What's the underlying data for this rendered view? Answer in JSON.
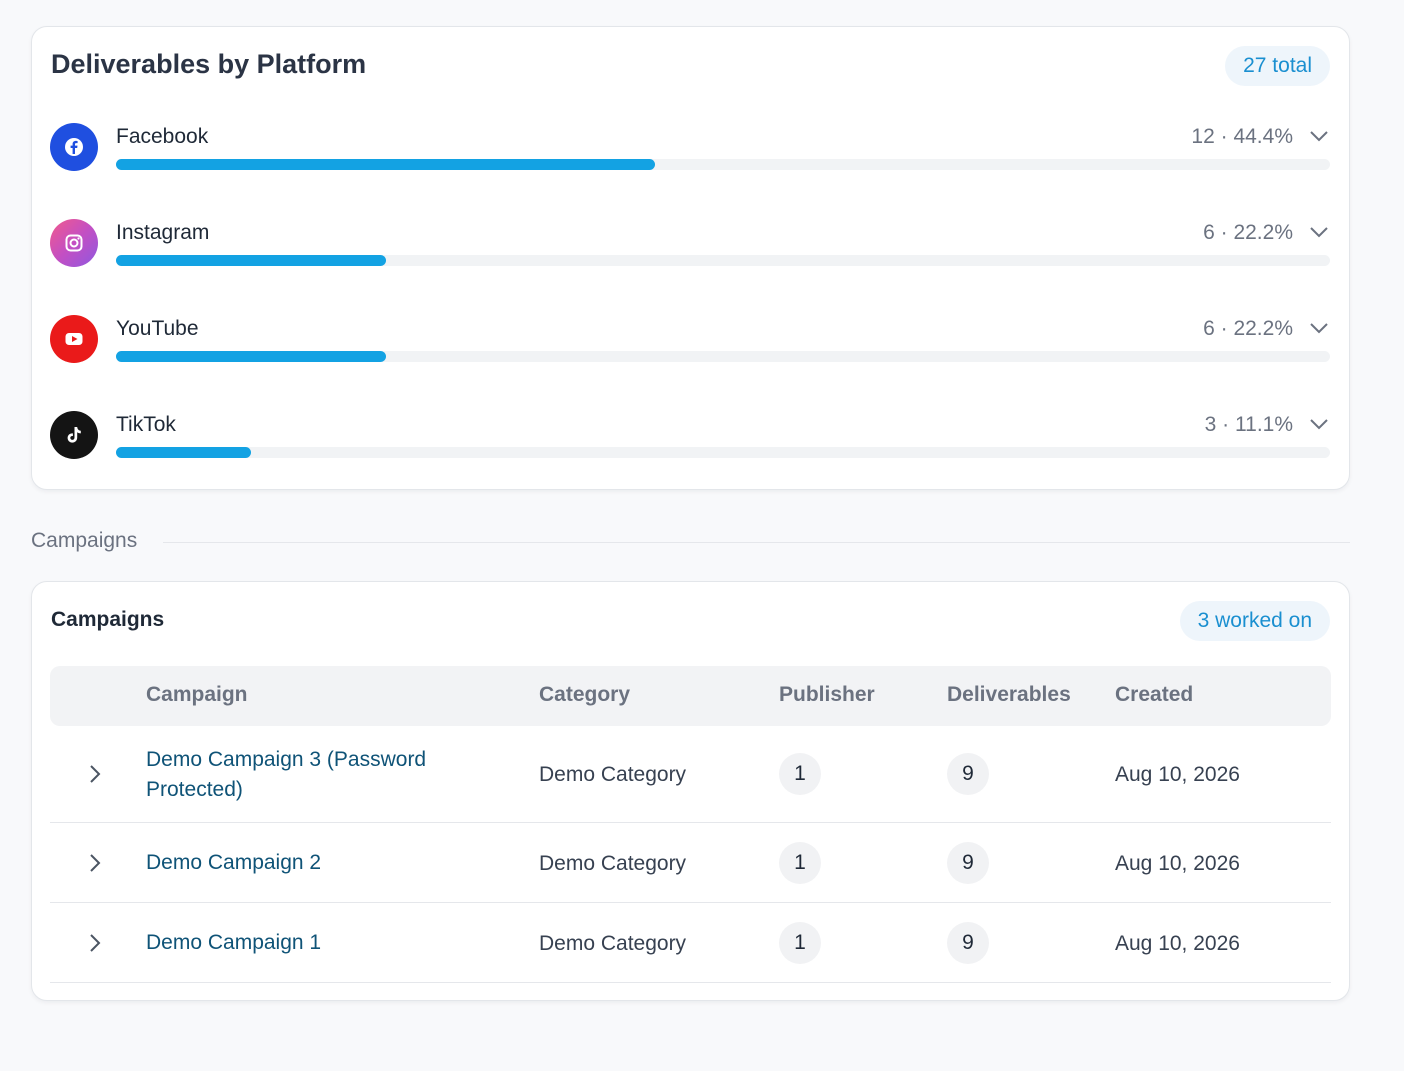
{
  "platforms_card": {
    "title": "Deliverables by Platform",
    "total_pill": "27 total",
    "platforms": [
      {
        "name": "Facebook",
        "stats": "12 · 44.4%",
        "count": 12,
        "share": 0.444,
        "icon": "facebook-icon",
        "color": "#1f4fe0"
      },
      {
        "name": "Instagram",
        "stats": "6 · 22.2%",
        "count": 6,
        "share": 0.222,
        "icon": "instagram-icon",
        "color": "#c34fc3"
      },
      {
        "name": "YouTube",
        "stats": "6 · 22.2%",
        "count": 6,
        "share": 0.222,
        "icon": "youtube-icon",
        "color": "#ea1a1a"
      },
      {
        "name": "TikTok",
        "stats": "3 · 11.1%",
        "count": 3,
        "share": 0.111,
        "icon": "tiktok-icon",
        "color": "#141414"
      }
    ],
    "bar_color": "#13a2e3"
  },
  "section_label": "Campaigns",
  "campaigns_card": {
    "title": "Campaigns",
    "worked_pill": "3 worked on",
    "columns": [
      "Campaign",
      "Category",
      "Publisher",
      "Deliverables",
      "Created"
    ],
    "rows": [
      {
        "campaign": "Demo Campaign 3 (Password Protected)",
        "category": "Demo Category",
        "publisher": "1",
        "deliverables": "9",
        "created": "Aug 10, 2026"
      },
      {
        "campaign": "Demo Campaign 2",
        "category": "Demo Category",
        "publisher": "1",
        "deliverables": "9",
        "created": "Aug 10, 2026"
      },
      {
        "campaign": "Demo Campaign 1",
        "category": "Demo Category",
        "publisher": "1",
        "deliverables": "9",
        "created": "Aug 10, 2026"
      }
    ]
  }
}
